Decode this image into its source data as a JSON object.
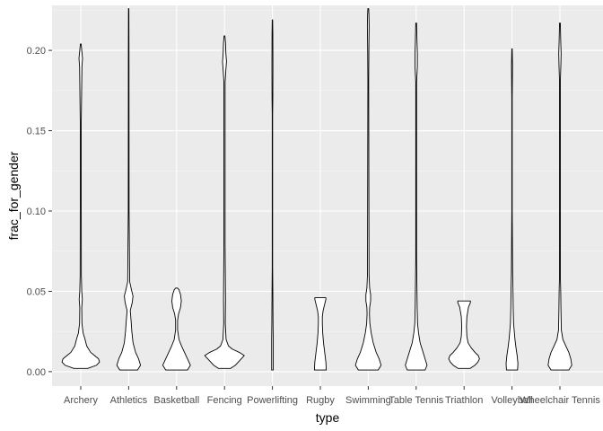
{
  "chart_data": {
    "type": "violin",
    "title": "",
    "xlabel": "type",
    "ylabel": "frac_for_gender",
    "ylim": [
      -0.009,
      0.228
    ],
    "yticks": [
      0.0,
      0.05,
      0.1,
      0.15,
      0.2
    ],
    "ytick_labels": [
      "0.00",
      "0.05",
      "0.10",
      "0.15",
      "0.20"
    ],
    "categories": [
      "Archery",
      "Athletics",
      "Basketball",
      "Fencing",
      "Powerlifting",
      "Rugby",
      "Swimming",
      "Table Tennis",
      "Triathlon",
      "Volleyball",
      "Wheelchair Tennis"
    ],
    "series": [
      {
        "category": "Archery",
        "min": 0.002,
        "max": 0.204,
        "profile": [
          [
            0.002,
            0.35
          ],
          [
            0.004,
            0.8
          ],
          [
            0.006,
            0.95
          ],
          [
            0.008,
            0.9
          ],
          [
            0.01,
            0.7
          ],
          [
            0.012,
            0.5
          ],
          [
            0.016,
            0.3
          ],
          [
            0.02,
            0.22
          ],
          [
            0.024,
            0.12
          ],
          [
            0.03,
            0.06
          ],
          [
            0.04,
            0.05
          ],
          [
            0.045,
            0.08
          ],
          [
            0.05,
            0.05
          ],
          [
            0.06,
            0.03
          ],
          [
            0.15,
            0.02
          ],
          [
            0.19,
            0.06
          ],
          [
            0.195,
            0.09
          ],
          [
            0.2,
            0.05
          ],
          [
            0.204,
            0.02
          ]
        ]
      },
      {
        "category": "Athletics",
        "min": 0.001,
        "max": 0.226,
        "profile": [
          [
            0.001,
            0.45
          ],
          [
            0.004,
            0.6
          ],
          [
            0.008,
            0.5
          ],
          [
            0.012,
            0.35
          ],
          [
            0.018,
            0.22
          ],
          [
            0.025,
            0.16
          ],
          [
            0.032,
            0.12
          ],
          [
            0.038,
            0.08
          ],
          [
            0.043,
            0.18
          ],
          [
            0.047,
            0.22
          ],
          [
            0.051,
            0.14
          ],
          [
            0.056,
            0.05
          ],
          [
            0.1,
            0.02
          ],
          [
            0.2,
            0.015
          ],
          [
            0.226,
            0.01
          ]
        ]
      },
      {
        "category": "Basketball",
        "min": 0.001,
        "max": 0.052,
        "profile": [
          [
            0.001,
            0.55
          ],
          [
            0.004,
            0.7
          ],
          [
            0.008,
            0.55
          ],
          [
            0.012,
            0.4
          ],
          [
            0.016,
            0.25
          ],
          [
            0.02,
            0.12
          ],
          [
            0.026,
            0.05
          ],
          [
            0.032,
            0.05
          ],
          [
            0.036,
            0.1
          ],
          [
            0.04,
            0.2
          ],
          [
            0.044,
            0.24
          ],
          [
            0.048,
            0.2
          ],
          [
            0.051,
            0.12
          ],
          [
            0.052,
            0.05
          ]
        ]
      },
      {
        "category": "Fencing",
        "min": 0.002,
        "max": 0.209,
        "profile": [
          [
            0.002,
            0.3
          ],
          [
            0.004,
            0.55
          ],
          [
            0.006,
            0.7
          ],
          [
            0.008,
            0.85
          ],
          [
            0.01,
            1.0
          ],
          [
            0.012,
            0.75
          ],
          [
            0.014,
            0.4
          ],
          [
            0.016,
            0.2
          ],
          [
            0.02,
            0.08
          ],
          [
            0.03,
            0.04
          ],
          [
            0.045,
            0.05
          ],
          [
            0.08,
            0.03
          ],
          [
            0.18,
            0.03
          ],
          [
            0.188,
            0.07
          ],
          [
            0.193,
            0.1
          ],
          [
            0.198,
            0.07
          ],
          [
            0.205,
            0.05
          ],
          [
            0.209,
            0.02
          ]
        ]
      },
      {
        "category": "Powerlifting",
        "min": 0.001,
        "max": 0.219,
        "profile": [
          [
            0.001,
            0.04
          ],
          [
            0.02,
            0.04
          ],
          [
            0.03,
            0.03
          ],
          [
            0.05,
            0.02
          ],
          [
            0.065,
            0.01
          ],
          [
            0.1,
            0.01
          ],
          [
            0.16,
            0.01
          ],
          [
            0.17,
            0.02
          ],
          [
            0.19,
            0.025
          ],
          [
            0.21,
            0.02
          ],
          [
            0.219,
            0.01
          ]
        ]
      },
      {
        "category": "Rugby",
        "min": 0.001,
        "max": 0.046,
        "profile": [
          [
            0.001,
            0.3
          ],
          [
            0.006,
            0.28
          ],
          [
            0.012,
            0.22
          ],
          [
            0.018,
            0.16
          ],
          [
            0.024,
            0.12
          ],
          [
            0.03,
            0.1
          ],
          [
            0.034,
            0.1
          ],
          [
            0.038,
            0.14
          ],
          [
            0.042,
            0.22
          ],
          [
            0.045,
            0.28
          ],
          [
            0.046,
            0.28
          ]
        ]
      },
      {
        "category": "Swimming",
        "min": 0.001,
        "max": 0.226,
        "profile": [
          [
            0.001,
            0.5
          ],
          [
            0.004,
            0.65
          ],
          [
            0.008,
            0.55
          ],
          [
            0.012,
            0.4
          ],
          [
            0.018,
            0.25
          ],
          [
            0.024,
            0.15
          ],
          [
            0.03,
            0.08
          ],
          [
            0.036,
            0.06
          ],
          [
            0.04,
            0.07
          ],
          [
            0.044,
            0.12
          ],
          [
            0.048,
            0.12
          ],
          [
            0.052,
            0.07
          ],
          [
            0.06,
            0.04
          ],
          [
            0.18,
            0.02
          ],
          [
            0.2,
            0.03
          ],
          [
            0.215,
            0.045
          ],
          [
            0.222,
            0.035
          ],
          [
            0.226,
            0.02
          ]
        ]
      },
      {
        "category": "Table Tennis",
        "min": 0.001,
        "max": 0.217,
        "profile": [
          [
            0.001,
            0.45
          ],
          [
            0.004,
            0.55
          ],
          [
            0.008,
            0.45
          ],
          [
            0.012,
            0.35
          ],
          [
            0.018,
            0.2
          ],
          [
            0.024,
            0.12
          ],
          [
            0.03,
            0.07
          ],
          [
            0.04,
            0.05
          ],
          [
            0.05,
            0.04
          ],
          [
            0.07,
            0.02
          ],
          [
            0.18,
            0.02
          ],
          [
            0.19,
            0.06
          ],
          [
            0.198,
            0.06
          ],
          [
            0.206,
            0.04
          ],
          [
            0.217,
            0.02
          ]
        ]
      },
      {
        "category": "Triathlon",
        "min": 0.002,
        "max": 0.044,
        "profile": [
          [
            0.002,
            0.3
          ],
          [
            0.004,
            0.55
          ],
          [
            0.006,
            0.7
          ],
          [
            0.008,
            0.78
          ],
          [
            0.01,
            0.72
          ],
          [
            0.012,
            0.55
          ],
          [
            0.015,
            0.35
          ],
          [
            0.018,
            0.2
          ],
          [
            0.022,
            0.14
          ],
          [
            0.028,
            0.12
          ],
          [
            0.034,
            0.14
          ],
          [
            0.04,
            0.22
          ],
          [
            0.043,
            0.32
          ],
          [
            0.044,
            0.32
          ]
        ]
      },
      {
        "category": "Volleyball",
        "min": 0.001,
        "max": 0.201,
        "profile": [
          [
            0.001,
            0.28
          ],
          [
            0.005,
            0.3
          ],
          [
            0.01,
            0.26
          ],
          [
            0.015,
            0.2
          ],
          [
            0.02,
            0.15
          ],
          [
            0.03,
            0.08
          ],
          [
            0.04,
            0.06
          ],
          [
            0.05,
            0.05
          ],
          [
            0.062,
            0.03
          ],
          [
            0.1,
            0.01
          ],
          [
            0.17,
            0.01
          ],
          [
            0.19,
            0.025
          ],
          [
            0.201,
            0.01
          ]
        ]
      },
      {
        "category": "Wheelchair Tennis",
        "min": 0.001,
        "max": 0.217,
        "profile": [
          [
            0.001,
            0.45
          ],
          [
            0.004,
            0.6
          ],
          [
            0.008,
            0.55
          ],
          [
            0.012,
            0.45
          ],
          [
            0.016,
            0.3
          ],
          [
            0.02,
            0.15
          ],
          [
            0.026,
            0.07
          ],
          [
            0.04,
            0.05
          ],
          [
            0.05,
            0.04
          ],
          [
            0.06,
            0.02
          ],
          [
            0.18,
            0.02
          ],
          [
            0.192,
            0.05
          ],
          [
            0.198,
            0.06
          ],
          [
            0.206,
            0.04
          ],
          [
            0.217,
            0.02
          ]
        ]
      }
    ],
    "grid": true,
    "legend": "none"
  }
}
